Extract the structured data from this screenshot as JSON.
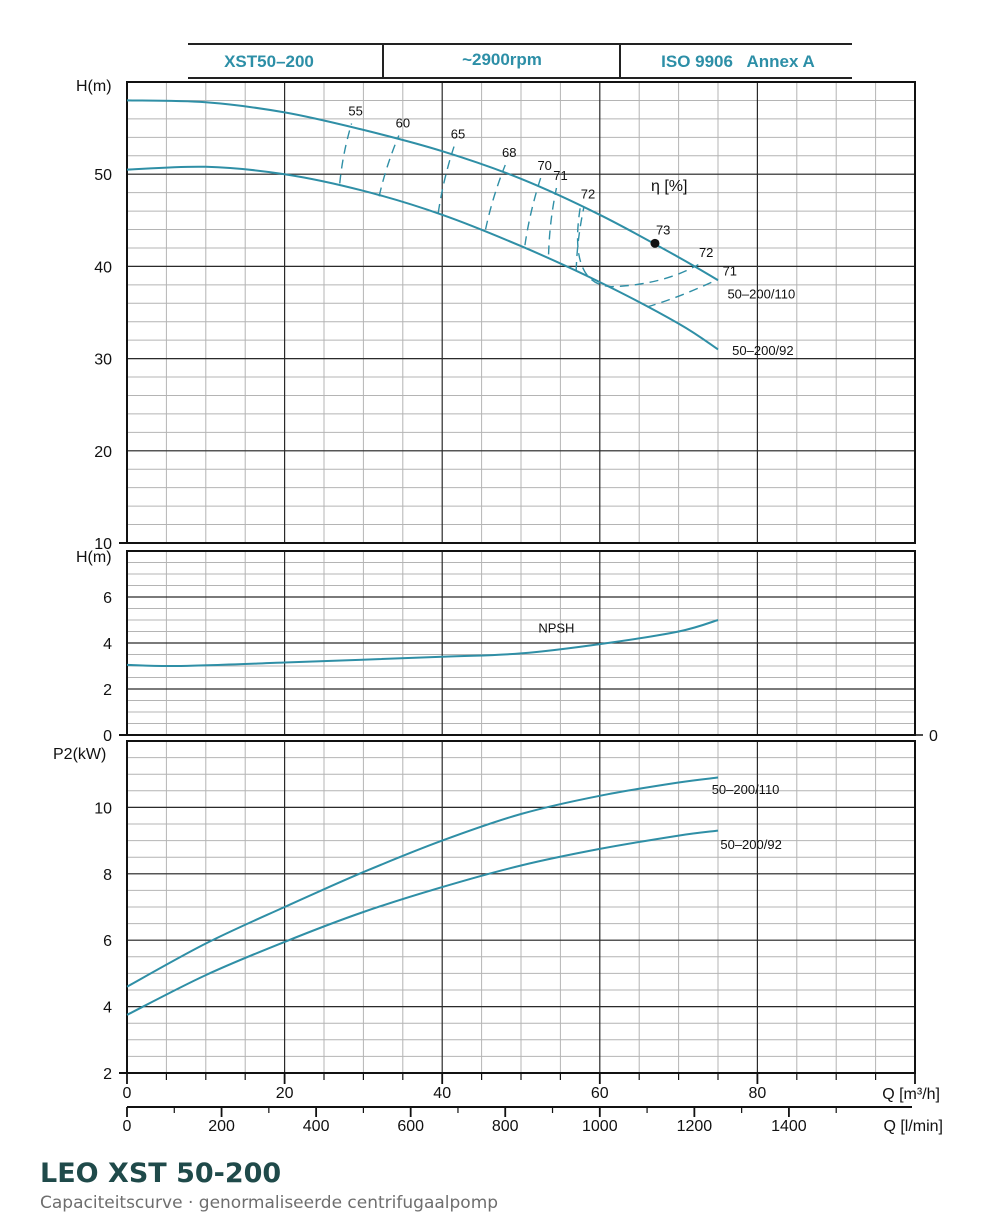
{
  "header": {
    "model": "XST50–200",
    "speed": "~2900rpm",
    "standard": "ISO 9906   Annex A"
  },
  "footer": {
    "title": "LEO XST 50-200",
    "subtitle": "Capaciteitscurve  ·  genormaliseerde centrifugaalpomp"
  },
  "colors": {
    "curve": "#2f8fa6",
    "grid_major": "#2a2a2a",
    "grid_minor": "#b4b4b4"
  },
  "chart_data": [
    {
      "type": "line",
      "panel": "head",
      "ylabel": "H(m)",
      "xlim": [
        0,
        100
      ],
      "ylim": [
        10,
        60
      ],
      "yticks": [
        10,
        20,
        30,
        40,
        50
      ],
      "series": [
        {
          "name": "50–200/110",
          "x": [
            0,
            10,
            20,
            30,
            40,
            50,
            60,
            70,
            75
          ],
          "y": [
            58.0,
            57.8,
            56.7,
            54.8,
            52.5,
            49.5,
            45.6,
            41.0,
            38.5
          ]
        },
        {
          "name": "50–200/92",
          "x": [
            0,
            10,
            20,
            30,
            40,
            50,
            60,
            70,
            75
          ],
          "y": [
            50.5,
            50.8,
            50.0,
            48.2,
            45.6,
            42.2,
            38.3,
            33.8,
            31.0
          ]
        }
      ],
      "efficiency_label": "η [%]",
      "efficiency_contours": [
        {
          "label": "55",
          "x": [
            27.0,
            28.5
          ],
          "y": [
            49.0,
            55.5
          ]
        },
        {
          "label": "60",
          "x": [
            32.0,
            34.5
          ],
          "y": [
            47.6,
            54.2
          ]
        },
        {
          "label": "65",
          "x": [
            39.5,
            41.5
          ],
          "y": [
            45.8,
            53.0
          ]
        },
        {
          "label": "68",
          "x": [
            45.5,
            48.0
          ],
          "y": [
            44.0,
            51.0
          ]
        },
        {
          "label": "70",
          "x": [
            50.5,
            52.5
          ],
          "y": [
            42.3,
            49.6
          ]
        },
        {
          "label": "71",
          "x": [
            53.5,
            54.5
          ],
          "y": [
            41.3,
            48.5
          ]
        },
        {
          "label": "72",
          "x": [
            57.0,
            58.0
          ],
          "y": [
            39.5,
            46.5
          ]
        }
      ],
      "efficiency_right_labels": [
        "72",
        "71"
      ],
      "best_efficiency_point": {
        "x": 67,
        "y": 42.5,
        "label": "73"
      }
    },
    {
      "type": "line",
      "panel": "npsh",
      "ylabel": "H(m)",
      "xlim": [
        0,
        100
      ],
      "ylim": [
        0,
        8
      ],
      "yticks": [
        0,
        2,
        4,
        6
      ],
      "right_tick": "0",
      "series": [
        {
          "name": "NPSH",
          "x": [
            0,
            6.5,
            20,
            40,
            50,
            60,
            70,
            75
          ],
          "y": [
            3.05,
            3.0,
            3.15,
            3.4,
            3.55,
            3.95,
            4.5,
            5.0
          ]
        }
      ]
    },
    {
      "type": "line",
      "panel": "power",
      "ylabel": "P2(kW)",
      "xlim": [
        0,
        100
      ],
      "ylim": [
        2,
        12
      ],
      "yticks": [
        2,
        4,
        6,
        8,
        10
      ],
      "series": [
        {
          "name": "50–200/110",
          "x": [
            0,
            10,
            20,
            30,
            40,
            50,
            60,
            70,
            75
          ],
          "y": [
            4.6,
            5.9,
            7.0,
            8.05,
            9.0,
            9.8,
            10.35,
            10.75,
            10.9
          ]
        },
        {
          "name": "50–200/92",
          "x": [
            0,
            10,
            20,
            30,
            40,
            50,
            60,
            70,
            75
          ],
          "y": [
            3.75,
            4.95,
            5.95,
            6.85,
            7.6,
            8.25,
            8.75,
            9.15,
            9.3
          ]
        }
      ]
    }
  ],
  "x_axis": {
    "label_m3h": "Q [m³/h]",
    "label_lmin": "Q [l/min]",
    "ticks_m3h": [
      "0",
      "20",
      "40",
      "60",
      "80"
    ],
    "ticks_lmin": [
      "0",
      "200",
      "400",
      "600",
      "800",
      "1000",
      "1200",
      "1400"
    ]
  }
}
